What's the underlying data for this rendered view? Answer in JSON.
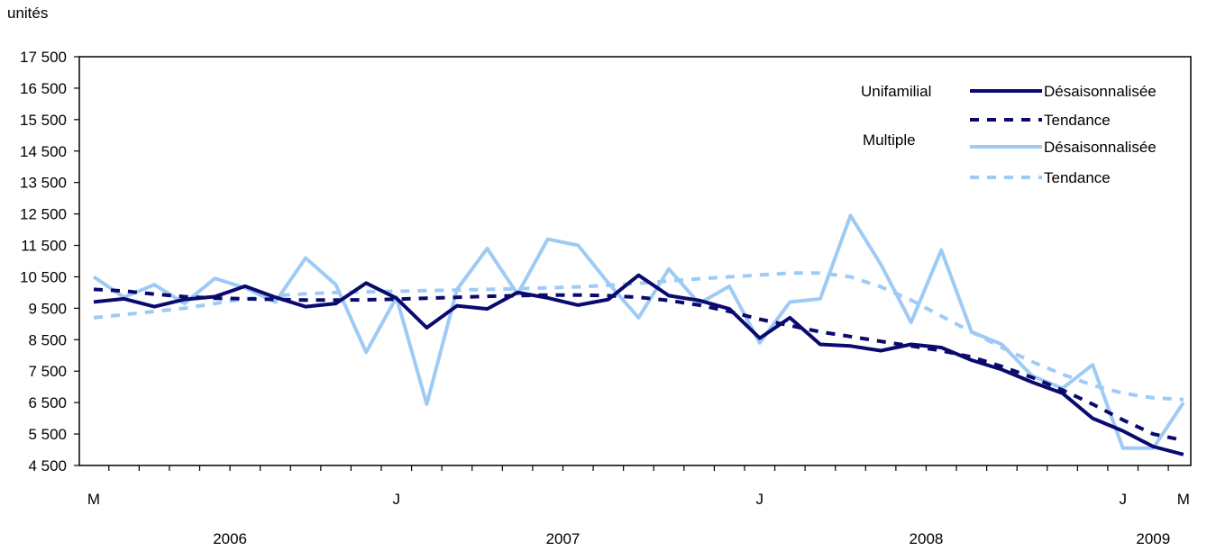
{
  "chart_data": {
    "type": "line",
    "ylabel": "unités",
    "ylim": [
      4500,
      17500
    ],
    "yticks": [
      4500,
      5500,
      6500,
      7500,
      8500,
      9500,
      10500,
      11500,
      12500,
      13500,
      14500,
      15500,
      16500,
      17500
    ],
    "ytick_labels": [
      "4 500",
      "5 500",
      "6 500",
      "7 500",
      "8 500",
      "9 500",
      "10 500",
      "11 500",
      "12 500",
      "13 500",
      "14 500",
      "15 500",
      "16 500",
      "17 500"
    ],
    "x": [
      "2006-03",
      "2006-04",
      "2006-05",
      "2006-06",
      "2006-07",
      "2006-08",
      "2006-09",
      "2006-10",
      "2006-11",
      "2006-12",
      "2007-01",
      "2007-02",
      "2007-03",
      "2007-04",
      "2007-05",
      "2007-06",
      "2007-07",
      "2007-08",
      "2007-09",
      "2007-10",
      "2007-11",
      "2007-12",
      "2008-01",
      "2008-02",
      "2008-03",
      "2008-04",
      "2008-05",
      "2008-06",
      "2008-07",
      "2008-08",
      "2008-09",
      "2008-10",
      "2008-11",
      "2008-12",
      "2009-01",
      "2009-02",
      "2009-03"
    ],
    "month_labels": [
      {
        "x": "2006-03",
        "label": "M"
      },
      {
        "x": "2007-01",
        "label": "J"
      },
      {
        "x": "2008-01",
        "label": "J"
      },
      {
        "x": "2009-01",
        "label": "J"
      },
      {
        "x": "2009-03",
        "label": "M"
      }
    ],
    "year_labels": [
      {
        "label": "2006",
        "from": "2006-03",
        "to": "2006-12"
      },
      {
        "label": "2007",
        "from": "2007-01",
        "to": "2007-12"
      },
      {
        "label": "2008",
        "from": "2008-01",
        "to": "2008-12"
      },
      {
        "label": "2009",
        "from": "2009-01",
        "to": "2009-03"
      }
    ],
    "series": [
      {
        "group": "Unifamilial",
        "name": "Désaisonnalisée",
        "color": "#0a0a6e",
        "style": "solid",
        "values": [
          9700,
          9800,
          9550,
          9780,
          9870,
          10200,
          9850,
          9550,
          9650,
          10300,
          9820,
          8880,
          9580,
          9480,
          10000,
          9830,
          9600,
          9780,
          10550,
          9900,
          9750,
          9480,
          8550,
          9200,
          8350,
          8300,
          8150,
          8350,
          8250,
          7850,
          7550,
          7150,
          6800,
          6000,
          5600,
          5100,
          4850
        ]
      },
      {
        "group": "",
        "name": "Tendance",
        "color": "#0a0a6e",
        "style": "dashed",
        "values": [
          10100,
          10050,
          9950,
          9870,
          9820,
          9800,
          9780,
          9760,
          9760,
          9770,
          9790,
          9820,
          9850,
          9880,
          9900,
          9920,
          9920,
          9900,
          9850,
          9750,
          9600,
          9400,
          9150,
          8950,
          8750,
          8600,
          8450,
          8300,
          8150,
          7950,
          7650,
          7300,
          6900,
          6450,
          5950,
          5500,
          5300
        ]
      },
      {
        "group": "Multiple",
        "name": "Désaisonnalisée",
        "color": "#9ecbf5",
        "style": "solid",
        "values": [
          10500,
          9850,
          10250,
          9650,
          10450,
          10150,
          9700,
          11100,
          10250,
          8100,
          9850,
          6450,
          10100,
          11400,
          9950,
          11700,
          11500,
          10300,
          9200,
          10750,
          9650,
          10200,
          8400,
          9700,
          9800,
          12450,
          10900,
          9050,
          11350,
          8750,
          8350,
          7350,
          6950,
          7700,
          5050,
          5050,
          6500
        ]
      },
      {
        "group": "",
        "name": "Tendance",
        "color": "#9ecbf5",
        "style": "dashed",
        "values": [
          9200,
          9300,
          9400,
          9500,
          9650,
          9800,
          9900,
          9960,
          10000,
          10020,
          10040,
          10060,
          10080,
          10100,
          10120,
          10150,
          10180,
          10230,
          10290,
          10370,
          10440,
          10500,
          10560,
          10620,
          10620,
          10500,
          10180,
          9760,
          9250,
          8750,
          8250,
          7800,
          7400,
          7050,
          6800,
          6650,
          6600
        ]
      }
    ]
  }
}
